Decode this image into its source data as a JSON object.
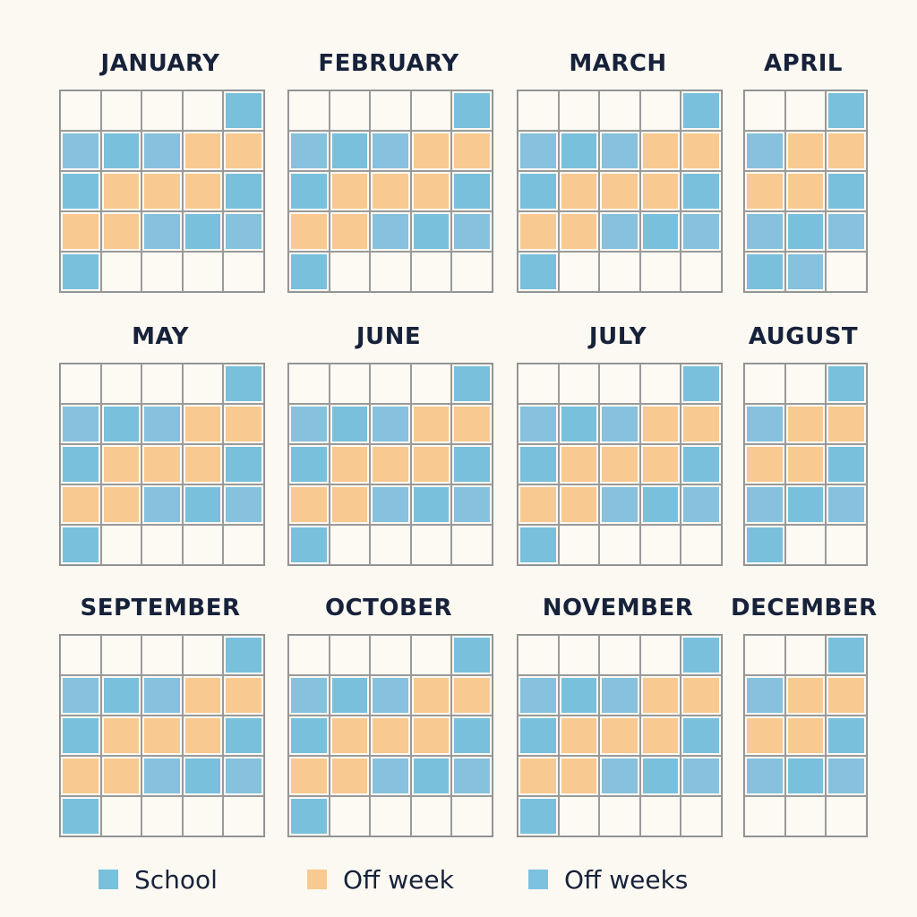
{
  "colors": {
    "school": "#79c0dc",
    "school_alt": "#86c1dd",
    "off_week": "#f8c991",
    "empty": "#fdfaf4",
    "off_weeks_swatch": "#7cc2df",
    "title": "#17223a"
  },
  "months": [
    {
      "name": "JANUARY",
      "cols": 5,
      "rows": [
        [
          "e",
          "e",
          "e",
          "e",
          "s"
        ],
        [
          "s",
          "s",
          "s",
          "o",
          "o"
        ],
        [
          "s",
          "o",
          "o",
          "o",
          "s"
        ],
        [
          "o",
          "o",
          "s",
          "s",
          "s"
        ],
        [
          "s",
          "e",
          "e",
          "e",
          "e"
        ]
      ]
    },
    {
      "name": "FEBRUARY",
      "cols": 5,
      "rows": [
        [
          "e",
          "e",
          "e",
          "e",
          "s"
        ],
        [
          "s",
          "s",
          "s",
          "o",
          "o"
        ],
        [
          "s",
          "o",
          "o",
          "o",
          "s"
        ],
        [
          "o",
          "o",
          "s",
          "s",
          "s"
        ],
        [
          "s",
          "e",
          "e",
          "e",
          "e"
        ]
      ]
    },
    {
      "name": "MARCH",
      "cols": 5,
      "rows": [
        [
          "e",
          "e",
          "e",
          "e",
          "s"
        ],
        [
          "s",
          "s",
          "s",
          "o",
          "o"
        ],
        [
          "s",
          "o",
          "o",
          "o",
          "s"
        ],
        [
          "o",
          "o",
          "s",
          "s",
          "s"
        ],
        [
          "s",
          "e",
          "e",
          "e",
          "e"
        ]
      ]
    },
    {
      "name": "APRIL",
      "cols": 3,
      "rows": [
        [
          "e",
          "e",
          "s"
        ],
        [
          "s",
          "o",
          "o"
        ],
        [
          "o",
          "o",
          "s"
        ],
        [
          "s",
          "s",
          "s"
        ],
        [
          "s",
          "s",
          "e"
        ]
      ]
    },
    {
      "name": "MAY",
      "cols": 5,
      "rows": [
        [
          "e",
          "e",
          "e",
          "e",
          "s"
        ],
        [
          "s",
          "s",
          "s",
          "o",
          "o"
        ],
        [
          "s",
          "o",
          "o",
          "o",
          "s"
        ],
        [
          "o",
          "o",
          "s",
          "s",
          "s"
        ],
        [
          "s",
          "e",
          "e",
          "e",
          "e"
        ]
      ]
    },
    {
      "name": "JUNE",
      "cols": 5,
      "rows": [
        [
          "e",
          "e",
          "e",
          "e",
          "s"
        ],
        [
          "s",
          "s",
          "s",
          "o",
          "o"
        ],
        [
          "s",
          "o",
          "o",
          "o",
          "s"
        ],
        [
          "o",
          "o",
          "s",
          "s",
          "s"
        ],
        [
          "s",
          "e",
          "e",
          "e",
          "e"
        ]
      ]
    },
    {
      "name": "JULY",
      "cols": 5,
      "rows": [
        [
          "e",
          "e",
          "e",
          "e",
          "s"
        ],
        [
          "s",
          "s",
          "s",
          "o",
          "o"
        ],
        [
          "s",
          "o",
          "o",
          "o",
          "s"
        ],
        [
          "o",
          "o",
          "s",
          "s",
          "s"
        ],
        [
          "s",
          "e",
          "e",
          "e",
          "e"
        ]
      ]
    },
    {
      "name": "AUGUST",
      "cols": 3,
      "rows": [
        [
          "e",
          "e",
          "s"
        ],
        [
          "s",
          "o",
          "o"
        ],
        [
          "o",
          "o",
          "s"
        ],
        [
          "s",
          "s",
          "s"
        ],
        [
          "s",
          "e",
          "e"
        ]
      ]
    },
    {
      "name": "SEPTEMBER",
      "cols": 5,
      "rows": [
        [
          "e",
          "e",
          "e",
          "e",
          "s"
        ],
        [
          "s",
          "s",
          "s",
          "o",
          "o"
        ],
        [
          "s",
          "o",
          "o",
          "o",
          "s"
        ],
        [
          "o",
          "o",
          "s",
          "s",
          "s"
        ],
        [
          "s",
          "e",
          "e",
          "e",
          "e"
        ]
      ]
    },
    {
      "name": "OCTOBER",
      "cols": 5,
      "rows": [
        [
          "e",
          "e",
          "e",
          "e",
          "s"
        ],
        [
          "s",
          "s",
          "s",
          "o",
          "o"
        ],
        [
          "s",
          "o",
          "o",
          "o",
          "s"
        ],
        [
          "o",
          "o",
          "s",
          "s",
          "s"
        ],
        [
          "s",
          "e",
          "e",
          "e",
          "e"
        ]
      ]
    },
    {
      "name": "NOVEMBER",
      "cols": 5,
      "rows": [
        [
          "e",
          "e",
          "e",
          "e",
          "s"
        ],
        [
          "s",
          "s",
          "s",
          "o",
          "o"
        ],
        [
          "s",
          "o",
          "o",
          "o",
          "s"
        ],
        [
          "o",
          "o",
          "s",
          "s",
          "s"
        ],
        [
          "s",
          "e",
          "e",
          "e",
          "e"
        ]
      ]
    },
    {
      "name": "DECEMBER",
      "cols": 3,
      "rows": [
        [
          "e",
          "e",
          "s"
        ],
        [
          "s",
          "o",
          "o"
        ],
        [
          "o",
          "o",
          "s"
        ],
        [
          "s",
          "s",
          "s"
        ],
        [
          "e",
          "e",
          "e"
        ]
      ]
    }
  ],
  "legend": [
    {
      "label": "School",
      "color": "#79c0dc"
    },
    {
      "label": "Off week",
      "color": "#f8c991"
    },
    {
      "label": "Off weeks",
      "color": "#7cc2df"
    }
  ]
}
